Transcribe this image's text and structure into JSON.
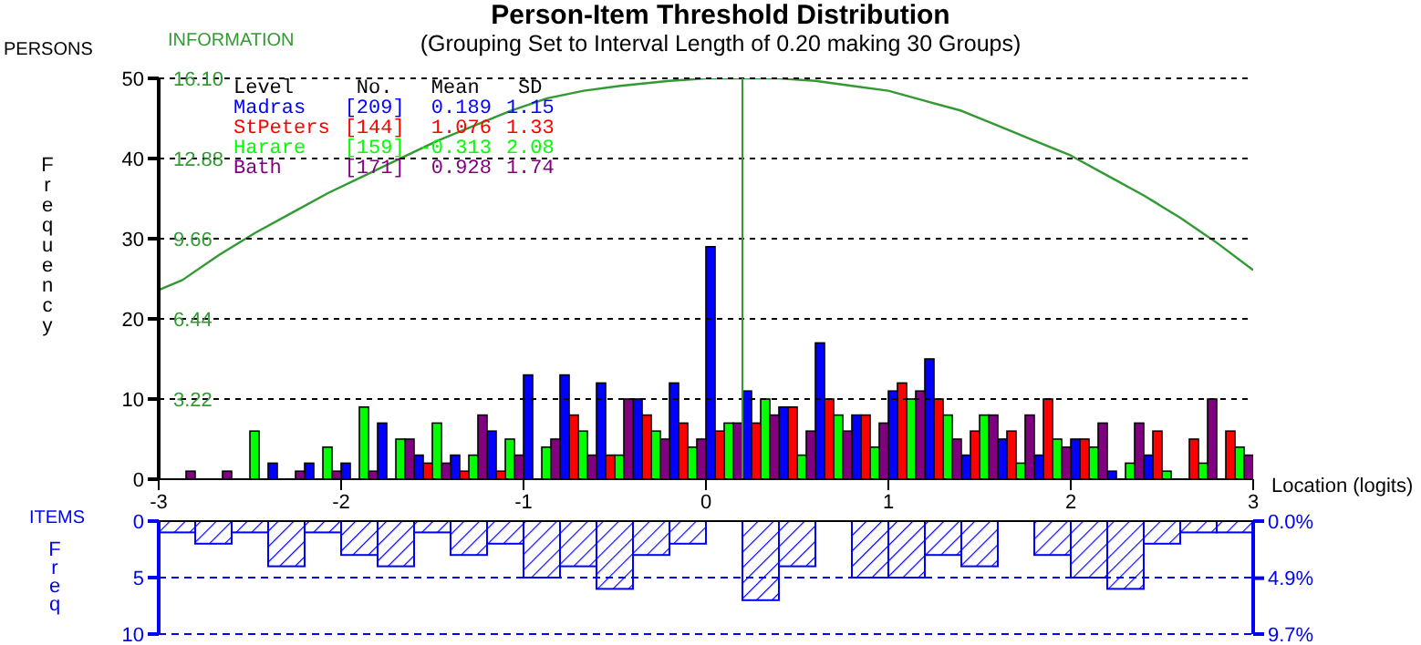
{
  "chart_data": [
    {
      "type": "bar",
      "title": "Person-Item Threshold Distribution",
      "subtitle": "(Grouping Set to Interval Length of  0.20  making  30  Groups)",
      "ylabel": "Frequency",
      "y2label": "INFORMATION",
      "xlabel": "Location (logits)",
      "legend": "top left",
      "grid": "y",
      "annotations": [
        "PERSONS",
        "Level",
        "No.",
        "Mean",
        "SD",
        "[209]",
        "0.189",
        "1.15",
        "[144]",
        "1.076",
        "1.33",
        "[159]",
        "-0.313",
        "2.08",
        "[171]",
        "0.928",
        "1.74"
      ],
      "x": [
        -2.9,
        -2.7,
        -2.5,
        -2.3,
        -2.1,
        -1.9,
        -1.7,
        -1.5,
        -1.3,
        -1.1,
        -0.9,
        -0.7,
        -0.5,
        -0.3,
        -0.1,
        0.1,
        0.3,
        0.5,
        0.7,
        0.9,
        1.1,
        1.3,
        1.5,
        1.7,
        1.9,
        2.1,
        2.3,
        2.5,
        2.7,
        2.9
      ],
      "xlim": [
        -3,
        3
      ],
      "xticks": [
        -3,
        -2,
        -1,
        0,
        1,
        2,
        3
      ],
      "ylim": [
        0,
        50
      ],
      "yticks": [
        0,
        10,
        20,
        30,
        40,
        50
      ],
      "y2lim": [
        0,
        16.1
      ],
      "y2ticks": [
        3.22,
        6.44,
        9.66,
        12.88,
        {
          "value": 16.1,
          "label": "16.10"
        }
      ],
      "ref_lines": [
        {
          "axis": "x",
          "value": 0.2,
          "color": "#339933"
        }
      ],
      "series": [
        {
          "name": "Madras",
          "color": "#0000ff",
          "values": [
            0,
            0,
            0,
            2,
            2,
            2,
            7,
            3,
            3,
            6,
            13,
            13,
            12,
            10,
            12,
            29,
            11,
            9,
            17,
            8,
            11,
            15,
            3,
            5,
            3,
            5,
            1,
            3,
            0,
            0
          ]
        },
        {
          "name": "StPeters",
          "color": "#ff0000",
          "values": [
            0,
            0,
            0,
            0,
            0,
            0,
            0,
            2,
            1,
            1,
            0,
            8,
            3,
            8,
            7,
            6,
            7,
            9,
            10,
            8,
            12,
            10,
            6,
            6,
            10,
            5,
            0,
            6,
            5,
            6
          ]
        },
        {
          "name": "Harare",
          "color": "#00ff00",
          "values": [
            0,
            0,
            6,
            0,
            4,
            9,
            5,
            7,
            3,
            5,
            4,
            6,
            3,
            6,
            4,
            7,
            10,
            3,
            8,
            4,
            10,
            8,
            8,
            2,
            5,
            4,
            2,
            1,
            2,
            4
          ]
        },
        {
          "name": "Bath",
          "color": "#800080",
          "values": [
            1,
            1,
            0,
            1,
            1,
            1,
            5,
            2,
            8,
            3,
            5,
            3,
            10,
            5,
            5,
            7,
            8,
            6,
            6,
            7,
            11,
            5,
            8,
            8,
            4,
            7,
            7,
            0,
            10,
            3
          ]
        },
        {
          "type": "line",
          "axis": "y2",
          "color": "#339933",
          "x": [
            -3,
            -2.87,
            -2.67,
            -2.47,
            -2.27,
            -2.07,
            -1.87,
            -1.67,
            -1.47,
            -1.27,
            -1.07,
            -0.87,
            -0.67,
            -0.47,
            -0.2,
            0,
            0.2,
            0.4,
            0.6,
            0.8,
            1,
            1.2,
            1.4,
            1.6,
            1.8,
            2,
            2.2,
            2.4,
            2.6,
            2.8,
            3
          ],
          "values": [
            7.6,
            8,
            9,
            9.9,
            10.7,
            11.5,
            12.2,
            12.9,
            13.6,
            14.2,
            14.8,
            15.3,
            15.6,
            15.8,
            16,
            16.1,
            16.1,
            16.1,
            16,
            15.8,
            15.6,
            15.2,
            14.8,
            14.2,
            13.6,
            13,
            12.2,
            11.4,
            10.5,
            9.5,
            8.4
          ]
        }
      ]
    },
    {
      "type": "bar",
      "ylabel": "Freq",
      "annotations": [
        "ITEMS"
      ],
      "tick_labels": "y",
      "color": "#0000ff",
      "ref_lines": [
        {
          "axis": "y",
          "value": 5,
          "color": "#0000ff",
          "line_style": "dashed"
        },
        {
          "axis": "y",
          "value": 10,
          "color": "#0000ff",
          "line_style": "dashed"
        }
      ],
      "x": [
        -2.9,
        -2.7,
        -2.5,
        -2.3,
        -2.1,
        -1.9,
        -1.7,
        -1.5,
        -1.3,
        -1.1,
        -0.9,
        -0.7,
        -0.5,
        -0.3,
        -0.1,
        0.1,
        0.3,
        0.5,
        0.7,
        0.9,
        1.1,
        1.3,
        1.5,
        1.7,
        1.9,
        2.1,
        2.3,
        2.5,
        2.7,
        2.9
      ],
      "values": [
        1,
        2,
        1,
        4,
        1,
        3,
        4,
        1,
        3,
        2,
        5,
        4,
        6,
        3,
        2,
        0,
        7,
        4,
        0,
        5,
        5,
        3,
        4,
        0,
        3,
        5,
        6,
        2,
        1,
        1
      ],
      "xlim": [
        -3,
        3
      ],
      "ylim": [
        10,
        0
      ],
      "yticks": [
        0,
        5,
        10
      ],
      "y2lim": [
        9.7,
        0
      ],
      "y2ticks": [
        {
          "value": 0,
          "label": "0.0%"
        },
        {
          "value": 4.9,
          "label": "4.9%"
        },
        {
          "value": 9.7,
          "label": "9.7%"
        }
      ]
    }
  ]
}
